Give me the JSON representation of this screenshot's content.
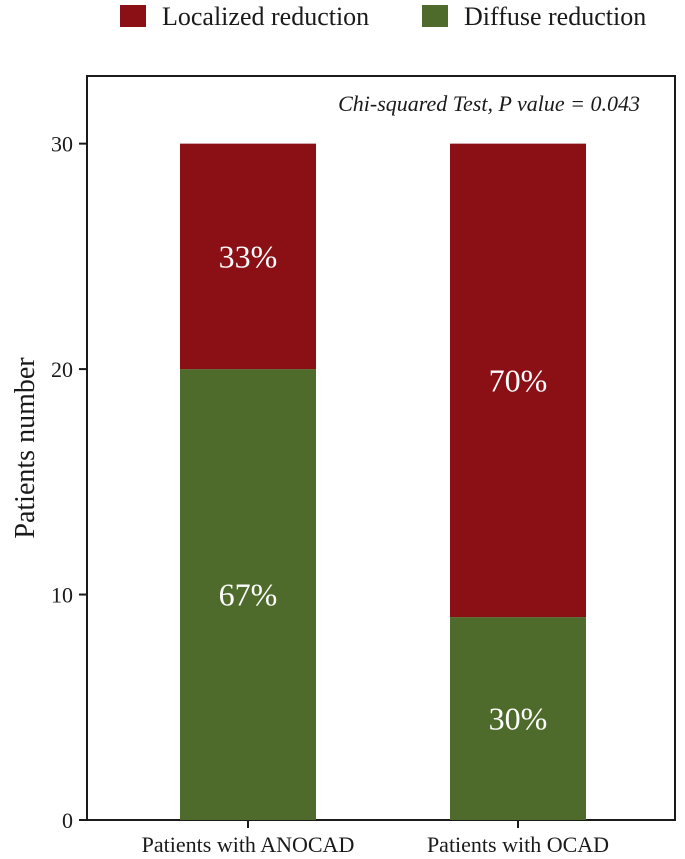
{
  "chart_data": {
    "type": "bar",
    "stacked": true,
    "categories": [
      "Patients with ANOCAD",
      "Patients with OCAD"
    ],
    "series": [
      {
        "name": "Diffuse reduction",
        "color": "#4e6b2b",
        "values": [
          20,
          9
        ],
        "labels": [
          "67%",
          "30%"
        ]
      },
      {
        "name": "Localized reduction",
        "color": "#8b1016",
        "values": [
          10,
          21
        ],
        "labels": [
          "33%",
          "70%"
        ]
      }
    ],
    "legend": [
      {
        "name": "Localized reduction",
        "color": "#8b1016"
      },
      {
        "name": "Diffuse reduction",
        "color": "#4e6b2b"
      }
    ],
    "legend_position": "top",
    "annotation": "Chi-squared Test, P value = 0.043",
    "xlabel": "",
    "ylabel": "Patients number",
    "ylim": [
      0,
      33
    ],
    "yticks": [
      0,
      10,
      20,
      30
    ],
    "grid": false
  }
}
